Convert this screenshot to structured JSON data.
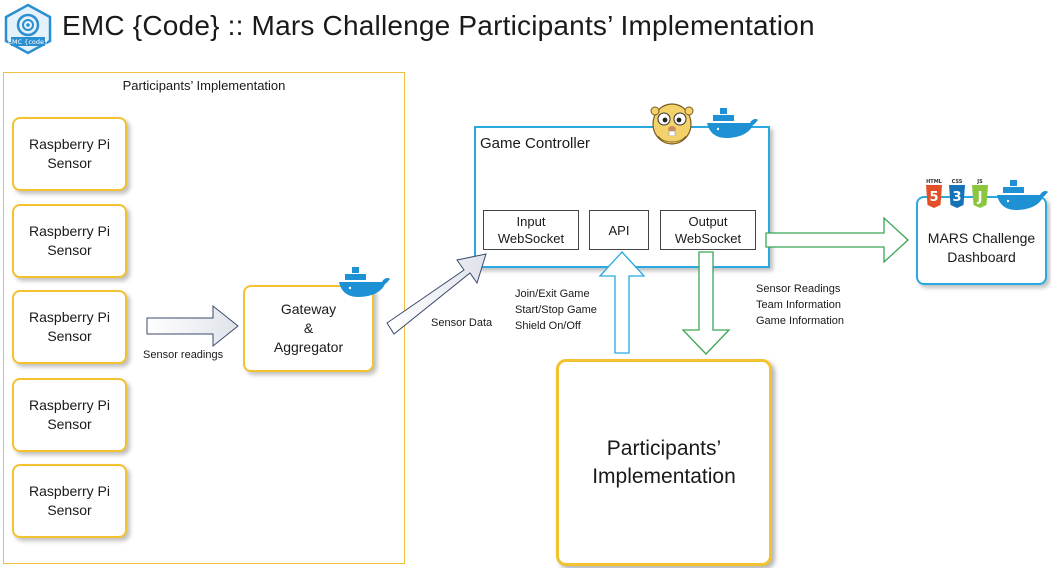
{
  "title": "EMC {Code} :: Mars Challenge Participants’ Implementation",
  "logo": {
    "text": "EMC {code}",
    "color": "#2a8fd0"
  },
  "participants_frame": {
    "label": "Participants’ Implementation"
  },
  "sensors": [
    {
      "line1": "Raspberry Pi",
      "line2": "Sensor"
    },
    {
      "line1": "Raspberry Pi",
      "line2": "Sensor"
    },
    {
      "line1": "Raspberry Pi",
      "line2": "Sensor"
    },
    {
      "line1": "Raspberry Pi",
      "line2": "Sensor"
    },
    {
      "line1": "Raspberry Pi",
      "line2": "Sensor"
    }
  ],
  "gateway": {
    "line1": "Gateway",
    "line2": "&",
    "line3": "Aggregator"
  },
  "game_controller": {
    "label": "Game Controller",
    "input": {
      "line1": "Input",
      "line2": "WebSocket"
    },
    "api": "API",
    "output": {
      "line1": "Output",
      "line2": "WebSocket"
    }
  },
  "dashboard": {
    "line1": "MARS Challenge",
    "line2": "Dashboard"
  },
  "tech_icons": [
    "HTML",
    "CSS",
    "JS"
  ],
  "implementation_box": {
    "line1": "Participants’",
    "line2": "Implementation"
  },
  "labels": {
    "sensor_readings": "Sensor readings",
    "sensor_data": "Sensor Data",
    "api_commands": [
      "Join/Exit Game",
      "Start/Stop Game",
      "Shield On/Off"
    ],
    "output_info": [
      "Sensor Readings",
      "Team Information",
      "Game Information"
    ]
  },
  "colors": {
    "yellow": "#f2c230",
    "blue": "#29a9e0",
    "green": "#3aa655",
    "docker": "#1d91d4"
  }
}
